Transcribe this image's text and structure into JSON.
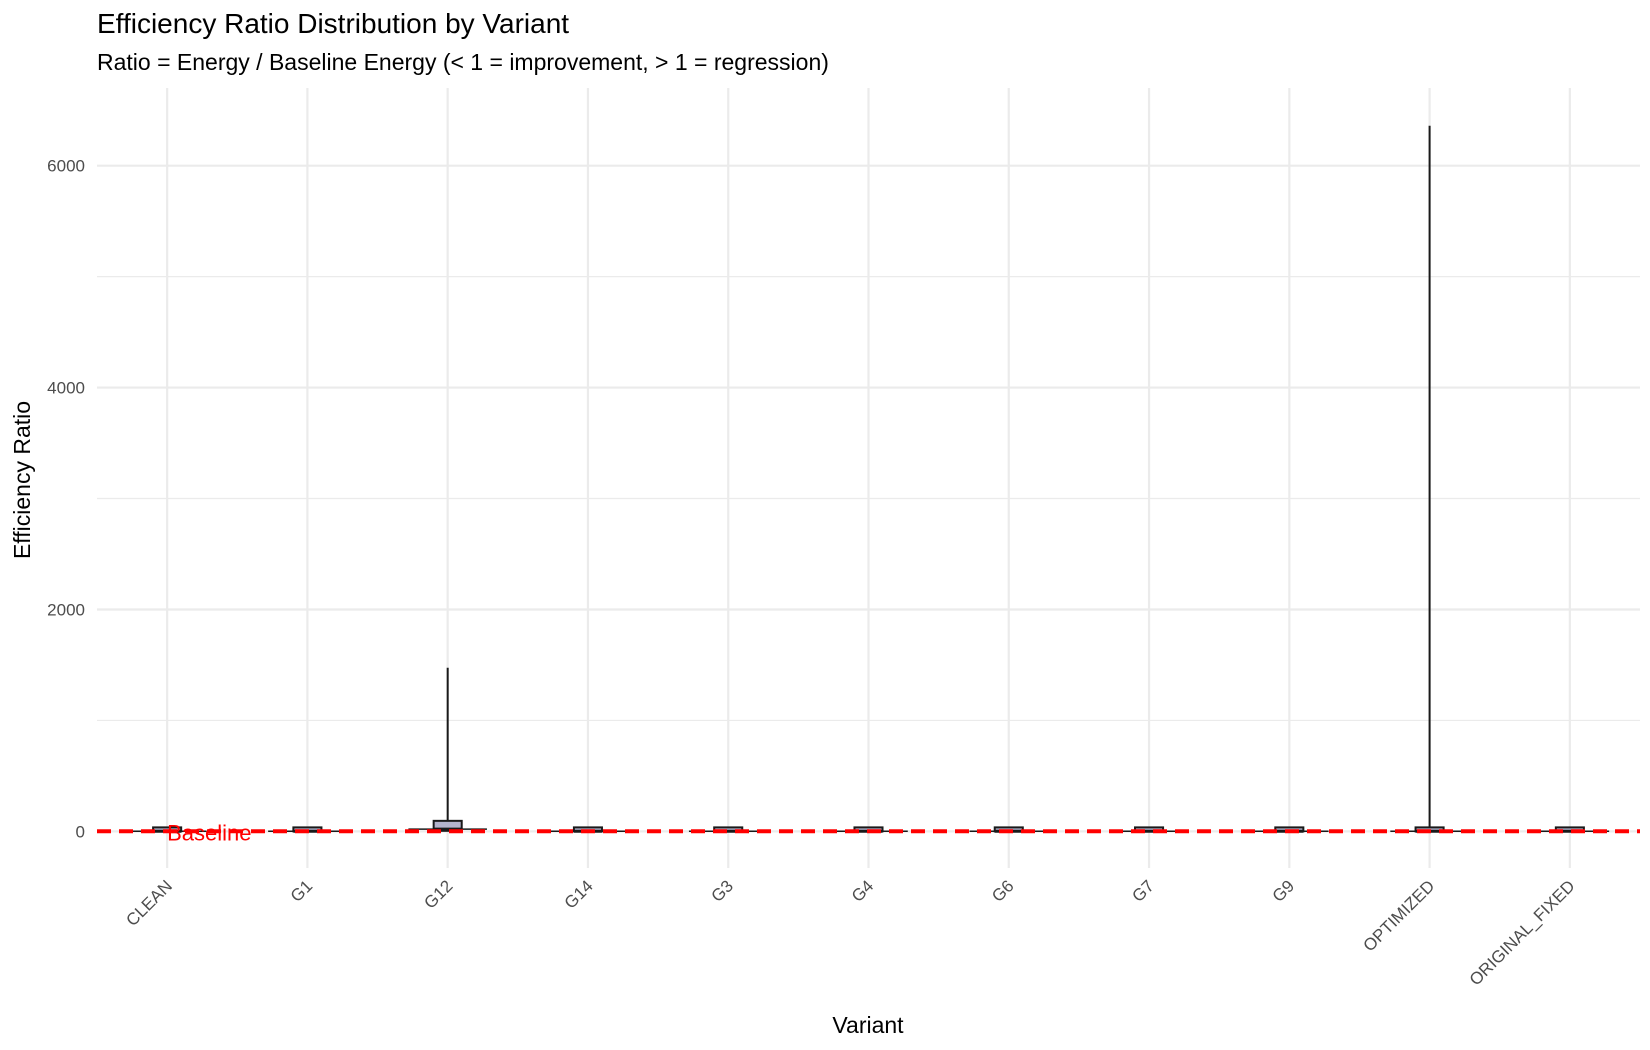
{
  "chart_data": {
    "type": "boxplot",
    "title": "Efficiency Ratio Distribution by Variant",
    "subtitle": "Ratio = Energy / Baseline Energy (< 1 = improvement, > 1 = regression)",
    "xlabel": "Variant",
    "ylabel": "Efficiency Ratio",
    "ylim": [
      -330,
      6700
    ],
    "y_ticks": [
      0,
      2000,
      4000,
      6000
    ],
    "y_minor_ticks": [
      1000,
      3000,
      5000
    ],
    "grid": true,
    "categories": [
      "CLEAN",
      "G1",
      "G12",
      "G14",
      "G3",
      "G4",
      "G6",
      "G7",
      "G9",
      "OPTIMIZED",
      "ORIGINAL_FIXED"
    ],
    "boxes": [
      {
        "label": "CLEAN",
        "min": 0,
        "q1": 0,
        "median": 1,
        "q3": 3,
        "max": 8
      },
      {
        "label": "G1",
        "min": 0,
        "q1": 0,
        "median": 1,
        "q3": 5,
        "max": 10
      },
      {
        "label": "G12",
        "min": 0,
        "q1": 5,
        "median": 20,
        "q3": 95,
        "max": 1475
      },
      {
        "label": "G14",
        "min": 0,
        "q1": 0,
        "median": 1,
        "q3": 5,
        "max": 12
      },
      {
        "label": "G3",
        "min": 0,
        "q1": 0,
        "median": 1,
        "q3": 5,
        "max": 12
      },
      {
        "label": "G4",
        "min": 0,
        "q1": 0,
        "median": 1,
        "q3": 6,
        "max": 14
      },
      {
        "label": "G6",
        "min": 0,
        "q1": 0,
        "median": 1,
        "q3": 6,
        "max": 14
      },
      {
        "label": "G7",
        "min": 0,
        "q1": 0,
        "median": 1,
        "q3": 5,
        "max": 12
      },
      {
        "label": "G9",
        "min": 0,
        "q1": 0,
        "median": 1,
        "q3": 5,
        "max": 12
      },
      {
        "label": "OPTIMIZED",
        "min": 0,
        "q1": 0,
        "median": 1,
        "q3": 8,
        "max": 6360
      },
      {
        "label": "ORIGINAL_FIXED",
        "min": 0,
        "q1": 0,
        "median": 1,
        "q3": 6,
        "max": 14
      }
    ],
    "reference_line": {
      "y": 1,
      "label": "Baseline",
      "color": "#ff0000",
      "style": "dashed"
    },
    "colors": {
      "box_fill": "#b3b3cc",
      "box_stroke": "#1a1a1a",
      "grid": "#ebebeb",
      "baseline": "#ff0000"
    }
  }
}
